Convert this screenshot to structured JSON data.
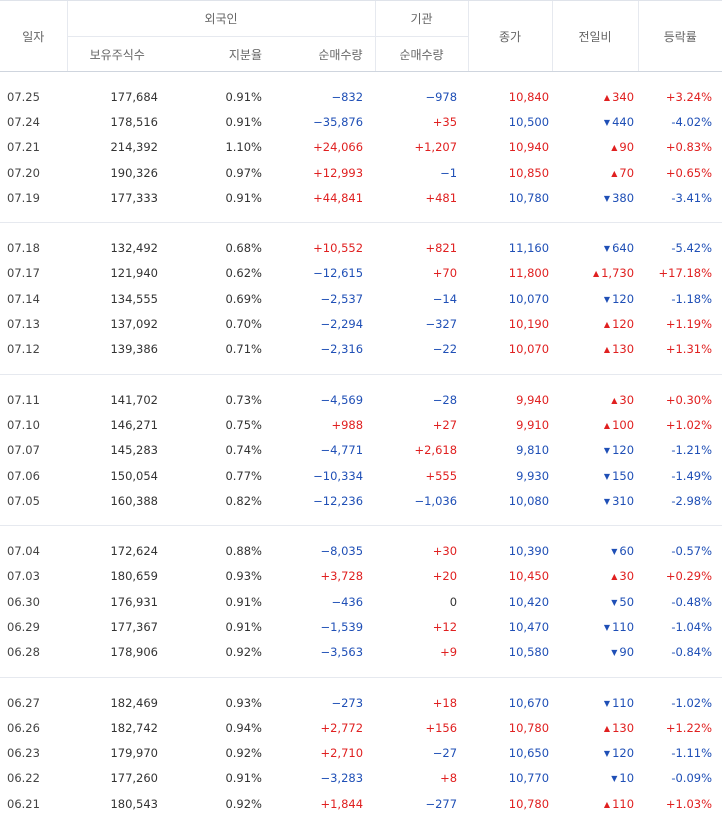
{
  "headers": {
    "date": "일자",
    "foreign": "외국인",
    "institution": "기관",
    "holdings": "보유주식수",
    "ratio": "지분율",
    "foreign_net": "순매수량",
    "inst_net": "순매수량",
    "close": "종가",
    "change": "전일비",
    "rate": "등락률"
  },
  "colors": {
    "up": "#e02020",
    "down": "#1f4fb6"
  },
  "groups": [
    [
      {
        "date": "07.25",
        "holdings": "177,684",
        "ratio": "0.91%",
        "fnet": "−832",
        "inet": "−978",
        "close": "10,840",
        "dir": "up",
        "chg": "340",
        "rate": "+3.24%"
      },
      {
        "date": "07.24",
        "holdings": "178,516",
        "ratio": "0.91%",
        "fnet": "−35,876",
        "inet": "+35",
        "close": "10,500",
        "dir": "down",
        "chg": "440",
        "rate": "-4.02%"
      },
      {
        "date": "07.21",
        "holdings": "214,392",
        "ratio": "1.10%",
        "fnet": "+24,066",
        "inet": "+1,207",
        "close": "10,940",
        "dir": "up",
        "chg": "90",
        "rate": "+0.83%"
      },
      {
        "date": "07.20",
        "holdings": "190,326",
        "ratio": "0.97%",
        "fnet": "+12,993",
        "inet": "−1",
        "close": "10,850",
        "dir": "up",
        "chg": "70",
        "rate": "+0.65%"
      },
      {
        "date": "07.19",
        "holdings": "177,333",
        "ratio": "0.91%",
        "fnet": "+44,841",
        "inet": "+481",
        "close": "10,780",
        "dir": "down",
        "chg": "380",
        "rate": "-3.41%"
      }
    ],
    [
      {
        "date": "07.18",
        "holdings": "132,492",
        "ratio": "0.68%",
        "fnet": "+10,552",
        "inet": "+821",
        "close": "11,160",
        "dir": "down",
        "chg": "640",
        "rate": "-5.42%"
      },
      {
        "date": "07.17",
        "holdings": "121,940",
        "ratio": "0.62%",
        "fnet": "−12,615",
        "inet": "+70",
        "close": "11,800",
        "dir": "up",
        "chg": "1,730",
        "rate": "+17.18%"
      },
      {
        "date": "07.14",
        "holdings": "134,555",
        "ratio": "0.69%",
        "fnet": "−2,537",
        "inet": "−14",
        "close": "10,070",
        "dir": "down",
        "chg": "120",
        "rate": "-1.18%"
      },
      {
        "date": "07.13",
        "holdings": "137,092",
        "ratio": "0.70%",
        "fnet": "−2,294",
        "inet": "−327",
        "close": "10,190",
        "dir": "up",
        "chg": "120",
        "rate": "+1.19%"
      },
      {
        "date": "07.12",
        "holdings": "139,386",
        "ratio": "0.71%",
        "fnet": "−2,316",
        "inet": "−22",
        "close": "10,070",
        "dir": "up",
        "chg": "130",
        "rate": "+1.31%"
      }
    ],
    [
      {
        "date": "07.11",
        "holdings": "141,702",
        "ratio": "0.73%",
        "fnet": "−4,569",
        "inet": "−28",
        "close": "9,940",
        "dir": "up",
        "chg": "30",
        "rate": "+0.30%"
      },
      {
        "date": "07.10",
        "holdings": "146,271",
        "ratio": "0.75%",
        "fnet": "+988",
        "inet": "+27",
        "close": "9,910",
        "dir": "up",
        "chg": "100",
        "rate": "+1.02%"
      },
      {
        "date": "07.07",
        "holdings": "145,283",
        "ratio": "0.74%",
        "fnet": "−4,771",
        "inet": "+2,618",
        "close": "9,810",
        "dir": "down",
        "chg": "120",
        "rate": "-1.21%"
      },
      {
        "date": "07.06",
        "holdings": "150,054",
        "ratio": "0.77%",
        "fnet": "−10,334",
        "inet": "+555",
        "close": "9,930",
        "dir": "down",
        "chg": "150",
        "rate": "-1.49%"
      },
      {
        "date": "07.05",
        "holdings": "160,388",
        "ratio": "0.82%",
        "fnet": "−12,236",
        "inet": "−1,036",
        "close": "10,080",
        "dir": "down",
        "chg": "310",
        "rate": "-2.98%"
      }
    ],
    [
      {
        "date": "07.04",
        "holdings": "172,624",
        "ratio": "0.88%",
        "fnet": "−8,035",
        "inet": "+30",
        "close": "10,390",
        "dir": "down",
        "chg": "60",
        "rate": "-0.57%"
      },
      {
        "date": "07.03",
        "holdings": "180,659",
        "ratio": "0.93%",
        "fnet": "+3,728",
        "inet": "+20",
        "close": "10,450",
        "dir": "up",
        "chg": "30",
        "rate": "+0.29%"
      },
      {
        "date": "06.30",
        "holdings": "176,931",
        "ratio": "0.91%",
        "fnet": "−436",
        "inet": "0",
        "close": "10,420",
        "dir": "down",
        "chg": "50",
        "rate": "-0.48%"
      },
      {
        "date": "06.29",
        "holdings": "177,367",
        "ratio": "0.91%",
        "fnet": "−1,539",
        "inet": "+12",
        "close": "10,470",
        "dir": "down",
        "chg": "110",
        "rate": "-1.04%"
      },
      {
        "date": "06.28",
        "holdings": "178,906",
        "ratio": "0.92%",
        "fnet": "−3,563",
        "inet": "+9",
        "close": "10,580",
        "dir": "down",
        "chg": "90",
        "rate": "-0.84%"
      }
    ],
    [
      {
        "date": "06.27",
        "holdings": "182,469",
        "ratio": "0.93%",
        "fnet": "−273",
        "inet": "+18",
        "close": "10,670",
        "dir": "down",
        "chg": "110",
        "rate": "-1.02%"
      },
      {
        "date": "06.26",
        "holdings": "182,742",
        "ratio": "0.94%",
        "fnet": "+2,772",
        "inet": "+156",
        "close": "10,780",
        "dir": "up",
        "chg": "130",
        "rate": "+1.22%"
      },
      {
        "date": "06.23",
        "holdings": "179,970",
        "ratio": "0.92%",
        "fnet": "+2,710",
        "inet": "−27",
        "close": "10,650",
        "dir": "down",
        "chg": "120",
        "rate": "-1.11%"
      },
      {
        "date": "06.22",
        "holdings": "177,260",
        "ratio": "0.91%",
        "fnet": "−3,283",
        "inet": "+8",
        "close": "10,770",
        "dir": "down",
        "chg": "10",
        "rate": "-0.09%"
      },
      {
        "date": "06.21",
        "holdings": "180,543",
        "ratio": "0.92%",
        "fnet": "+1,844",
        "inet": "−277",
        "close": "10,780",
        "dir": "up",
        "chg": "110",
        "rate": "+1.03%"
      }
    ]
  ]
}
